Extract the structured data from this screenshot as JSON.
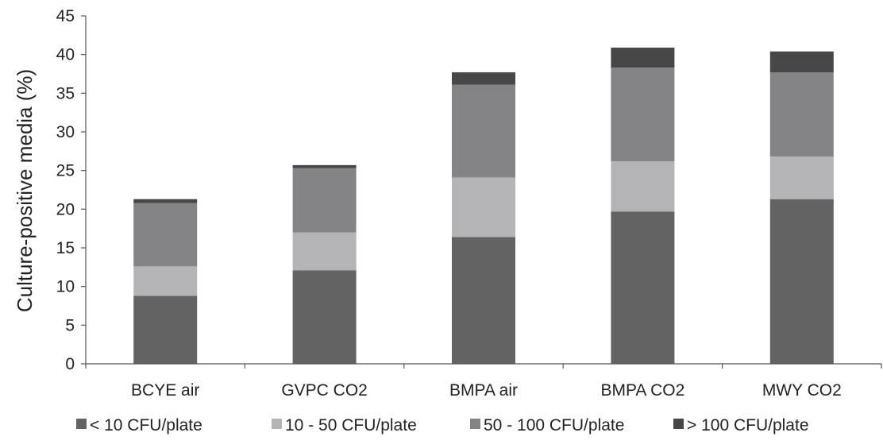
{
  "chart_data": {
    "type": "bar",
    "stacked": true,
    "title": "",
    "xlabel": "",
    "ylabel": "Culture-positive media (%)",
    "ylim": [
      0,
      45
    ],
    "yticks": [
      "0",
      "5",
      "10",
      "15",
      "20",
      "25",
      "30",
      "35",
      "40",
      "45"
    ],
    "grid": false,
    "legend_position": "bottom",
    "categories": [
      "BCYE air",
      "GVPC CO2",
      "BMPA air",
      "BMPA CO2",
      "MWY CO2"
    ],
    "series": [
      {
        "name": "< 10 CFU/plate",
        "color": "#636363",
        "values": [
          8.8,
          12.1,
          16.4,
          19.7,
          21.3
        ]
      },
      {
        "name": "10 - 50 CFU/plate",
        "color": "#b4b4b7",
        "values": [
          3.8,
          4.9,
          7.7,
          6.5,
          5.5
        ]
      },
      {
        "name": "50 - 100 CFU/plate",
        "color": "#848486",
        "values": [
          8.2,
          8.3,
          12.0,
          12.1,
          10.9
        ]
      },
      {
        "name": "> 100 CFU/plate",
        "color": "#474747",
        "values": [
          0.5,
          0.4,
          1.6,
          2.6,
          2.7
        ]
      }
    ]
  }
}
